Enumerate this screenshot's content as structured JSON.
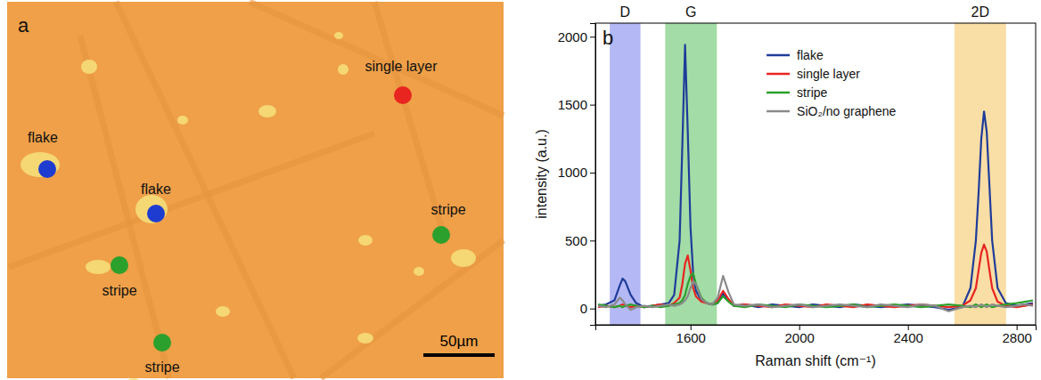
{
  "panel_a": {
    "letter": "a",
    "background": "#efa048",
    "markers": [
      {
        "label": "single layer",
        "color": "#e8251f"
      },
      {
        "label": "flake",
        "color": "#1f3cd0"
      },
      {
        "label": "flake",
        "color": "#1f3cd0"
      },
      {
        "label": "stripe",
        "color": "#2ca02c"
      },
      {
        "label": "stripe",
        "color": "#2ca02c"
      },
      {
        "label": "stripe",
        "color": "#2ca02c"
      }
    ],
    "scale_bar": "50µm"
  },
  "chart_data": {
    "type": "line",
    "panel_label": "b",
    "x_label": "Raman shift (cm⁻¹)",
    "y_label": "intensity (a.u.)",
    "xlim": [
      1250,
      2870
    ],
    "ylim": [
      -120,
      2100
    ],
    "xticks": [
      1600,
      2000,
      2400,
      2800
    ],
    "yticks": [
      0,
      500,
      1000,
      1500,
      2000
    ],
    "grid": false,
    "legend": "top",
    "bands": [
      {
        "label": "D",
        "range": [
          1303,
          1416
        ],
        "color": "#b4b8f4"
      },
      {
        "label": "G",
        "range": [
          1507,
          1697
        ],
        "color": "#a3dca6"
      },
      {
        "label": "2D",
        "range": [
          2571,
          2761
        ],
        "color": "#f9dea6"
      }
    ],
    "x": [
      1260,
      1290,
      1320,
      1340,
      1350,
      1360,
      1380,
      1400,
      1430,
      1460,
      1490,
      1520,
      1540,
      1560,
      1570,
      1580,
      1590,
      1600,
      1610,
      1620,
      1640,
      1660,
      1680,
      1700,
      1720,
      1740,
      1760,
      1800,
      1850,
      1900,
      1950,
      2000,
      2050,
      2100,
      2150,
      2200,
      2250,
      2300,
      2350,
      2400,
      2450,
      2500,
      2550,
      2600,
      2630,
      2650,
      2660,
      2670,
      2680,
      2690,
      2700,
      2710,
      2730,
      2760,
      2800,
      2830,
      2860
    ],
    "series": [
      {
        "name": "flake",
        "color": "#1f3c99",
        "values": [
          20,
          30,
          60,
          170,
          220,
          200,
          100,
          40,
          10,
          20,
          30,
          40,
          100,
          500,
          1200,
          1940,
          1300,
          600,
          250,
          130,
          60,
          40,
          30,
          40,
          110,
          60,
          20,
          30,
          10,
          30,
          20,
          10,
          30,
          20,
          10,
          30,
          20,
          10,
          20,
          30,
          20,
          10,
          -10,
          10,
          150,
          500,
          850,
          1250,
          1450,
          1300,
          900,
          500,
          150,
          40,
          20,
          30,
          40
        ]
      },
      {
        "name": "single layer",
        "color": "#e8251f",
        "values": [
          10,
          20,
          10,
          20,
          30,
          20,
          10,
          20,
          10,
          20,
          30,
          20,
          40,
          80,
          180,
          330,
          390,
          280,
          150,
          90,
          50,
          40,
          30,
          60,
          130,
          70,
          20,
          30,
          20,
          10,
          30,
          20,
          10,
          30,
          20,
          10,
          30,
          20,
          10,
          20,
          30,
          20,
          10,
          20,
          60,
          150,
          280,
          410,
          470,
          420,
          280,
          150,
          50,
          20,
          10,
          20,
          30
        ]
      },
      {
        "name": "stripe",
        "color": "#2ca02c",
        "values": [
          30,
          20,
          10,
          20,
          10,
          20,
          30,
          20,
          10,
          20,
          10,
          20,
          30,
          40,
          60,
          100,
          180,
          240,
          260,
          180,
          80,
          40,
          30,
          40,
          90,
          50,
          20,
          10,
          30,
          20,
          10,
          30,
          20,
          10,
          20,
          30,
          10,
          20,
          30,
          20,
          10,
          20,
          30,
          20,
          10,
          30,
          20,
          10,
          20,
          30,
          20,
          10,
          20,
          30,
          40,
          50,
          60
        ]
      },
      {
        "name": "SiO₂/no graphene",
        "color": "#8a8a8a",
        "values": [
          20,
          10,
          30,
          80,
          60,
          30,
          -10,
          10,
          20,
          10,
          20,
          30,
          20,
          30,
          40,
          60,
          90,
          150,
          200,
          180,
          70,
          40,
          30,
          80,
          240,
          120,
          30,
          20,
          30,
          10,
          20,
          30,
          10,
          20,
          30,
          20,
          10,
          30,
          20,
          10,
          30,
          20,
          -20,
          10,
          20,
          10,
          20,
          30,
          20,
          10,
          20,
          30,
          20,
          10,
          20,
          30,
          20
        ]
      }
    ]
  }
}
